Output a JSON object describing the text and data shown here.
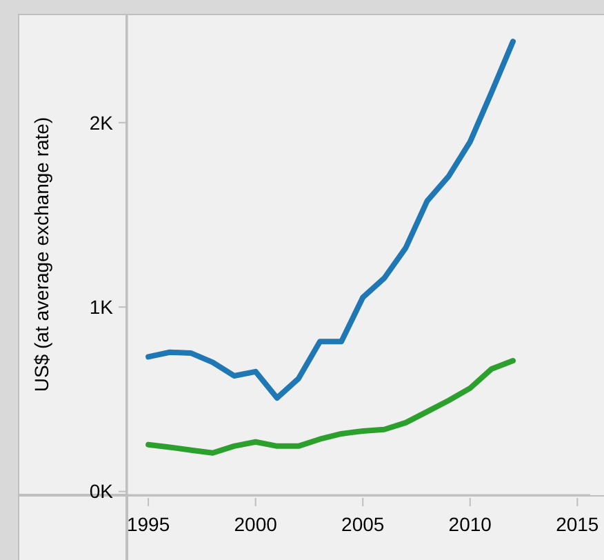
{
  "chart_data": {
    "type": "line",
    "ylabel": "US$ (at average exchange rate)",
    "x": [
      1995,
      1996,
      1997,
      1998,
      1999,
      2000,
      2001,
      2002,
      2003,
      2004,
      2005,
      2006,
      2007,
      2008,
      2009,
      2010,
      2011,
      2012
    ],
    "series": [
      {
        "color": "#1f77b4",
        "values": [
          730,
          755,
          750,
          700,
          627,
          650,
          507,
          612,
          813,
          813,
          1052,
          1157,
          1321,
          1575,
          1709,
          1896,
          2164,
          2440
        ]
      },
      {
        "color": "#2ca02c",
        "values": [
          254,
          240,
          224,
          209,
          246,
          269,
          246,
          246,
          284,
          313,
          328,
          336,
          373,
          433,
          493,
          560,
          664,
          709
        ]
      }
    ],
    "xlim": [
      1994,
      2015.6
    ],
    "xticks": [
      1995,
      2000,
      2005,
      2010,
      2015
    ],
    "ylim": [
      -20,
      2590
    ],
    "yticks": [
      {
        "value": 0,
        "label": "0K"
      },
      {
        "value": 1000,
        "label": "1K"
      },
      {
        "value": 2000,
        "label": "2K"
      }
    ],
    "grid": false
  }
}
